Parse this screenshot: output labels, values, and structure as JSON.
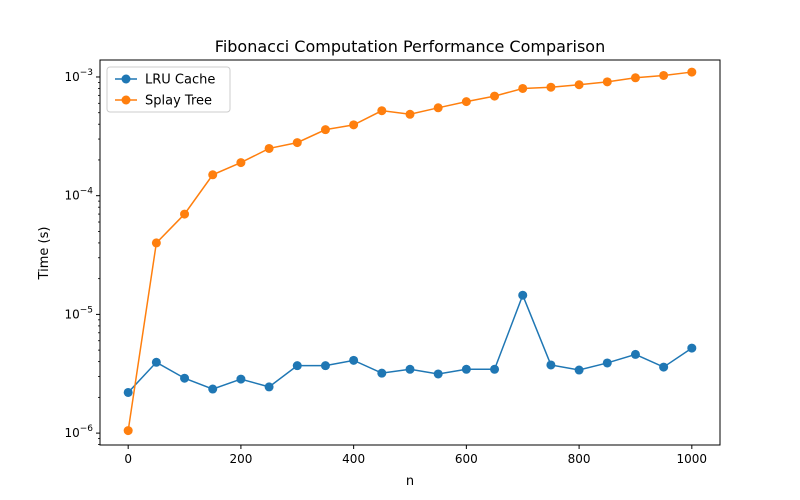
{
  "chart_data": {
    "type": "line",
    "title": "Fibonacci Computation Performance Comparison",
    "xlabel": "n",
    "ylabel": "Time (s)",
    "xlim": [
      -50,
      1050
    ],
    "ylim": [
      7.94e-07,
      0.00139
    ],
    "yscale": "log",
    "xticks": [
      0,
      200,
      400,
      600,
      800,
      1000
    ],
    "xtick_labels": [
      "0",
      "200",
      "400",
      "600",
      "800",
      "1000"
    ],
    "yticks": [
      1e-06,
      1e-05,
      0.0001,
      0.001
    ],
    "ytick_mantissa": "10",
    "ytick_exponents": [
      "−6",
      "−5",
      "−4",
      "−3"
    ],
    "legend_position": "upper-left",
    "grid": false,
    "x": [
      0,
      50,
      100,
      150,
      200,
      250,
      300,
      350,
      400,
      450,
      500,
      550,
      600,
      650,
      700,
      750,
      800,
      850,
      900,
      950,
      1000
    ],
    "series": [
      {
        "name": "LRU Cache",
        "color": "#1f77b4",
        "values": [
          2.2e-06,
          3.95e-06,
          2.9e-06,
          2.35e-06,
          2.85e-06,
          2.45e-06,
          3.7e-06,
          3.7e-06,
          4.1e-06,
          3.2e-06,
          3.45e-06,
          3.15e-06,
          3.45e-06,
          3.45e-06,
          1.45e-05,
          3.75e-06,
          3.4e-06,
          3.9e-06,
          4.6e-06,
          3.6e-06,
          5.2e-06
        ]
      },
      {
        "name": "Splay Tree",
        "color": "#ff7f0e",
        "values": [
          1.05e-06,
          4e-05,
          7e-05,
          0.00015,
          0.00019,
          0.00025,
          0.00028,
          0.00036,
          0.000395,
          0.00052,
          0.000485,
          0.00055,
          0.00062,
          0.00069,
          0.0008,
          0.00082,
          0.00086,
          0.00091,
          0.000985,
          0.00103,
          0.0011
        ]
      }
    ]
  }
}
